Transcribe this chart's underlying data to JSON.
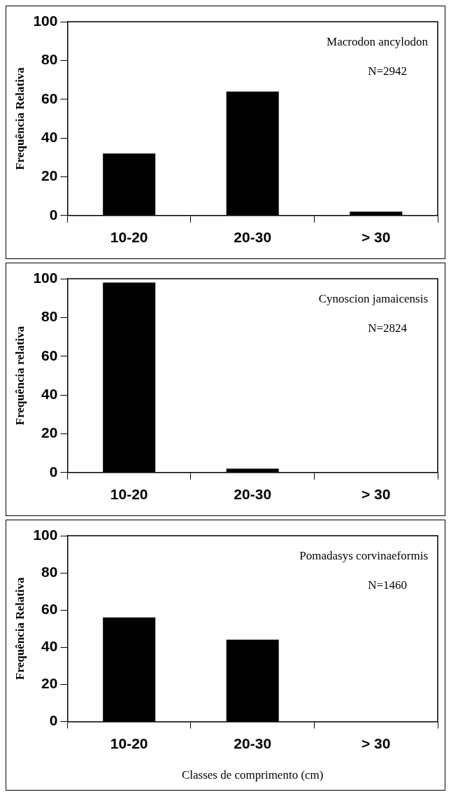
{
  "chart_data": [
    {
      "type": "bar",
      "ylabel": "Frequência Relativa",
      "categories": [
        "10-20",
        "20-30",
        "> 30"
      ],
      "values": [
        32,
        64,
        2
      ],
      "color": "#000000",
      "ylim": [
        0,
        100
      ],
      "yticks": [
        0,
        20,
        40,
        60,
        80,
        100
      ],
      "annotations": [
        "Macrodon ancylodon",
        "N=2942"
      ]
    },
    {
      "type": "bar",
      "ylabel": "Frequência relativa",
      "categories": [
        "10-20",
        "20-30",
        "> 30"
      ],
      "values": [
        98,
        2,
        0
      ],
      "color": "#000000",
      "ylim": [
        0,
        100
      ],
      "yticks": [
        0,
        20,
        40,
        60,
        80,
        100
      ],
      "annotations": [
        "Cynoscion jamaicensis",
        "N=2824"
      ]
    },
    {
      "type": "bar",
      "ylabel": "Frequência Relativa",
      "xlabel": "Classes de comprimento (cm)",
      "categories": [
        "10-20",
        "20-30",
        "> 30"
      ],
      "values": [
        56,
        44,
        0
      ],
      "color": "#000000",
      "ylim": [
        0,
        100
      ],
      "yticks": [
        0,
        20,
        40,
        60,
        80,
        100
      ],
      "annotations": [
        "Pomadasys corvinaeformis",
        "N=1460"
      ]
    }
  ]
}
